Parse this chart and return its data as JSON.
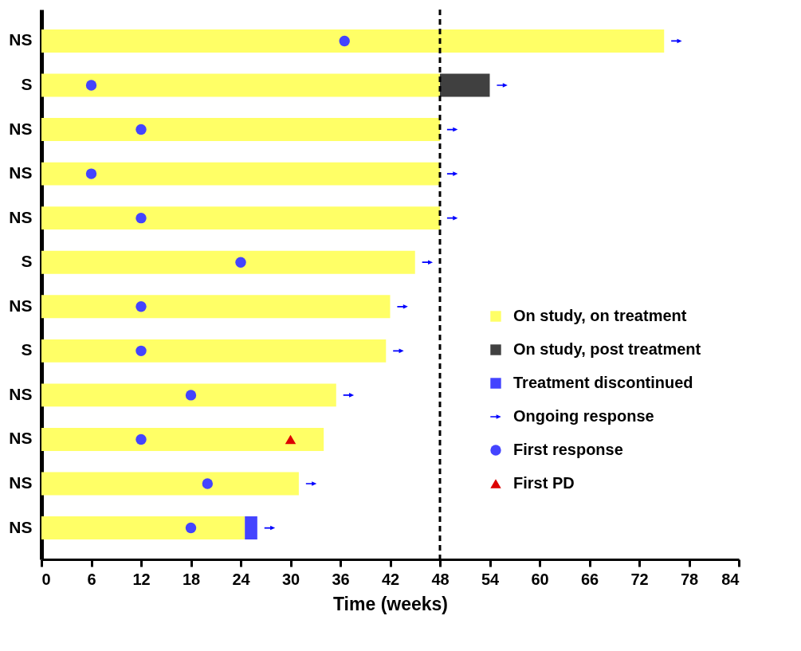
{
  "chart_data": {
    "type": "bar",
    "orientation": "horizontal",
    "stacked": true,
    "xlabel": "Time (weeks)",
    "categories": [
      "NS",
      "S",
      "NS",
      "NS",
      "NS",
      "S",
      "NS",
      "S",
      "NS",
      "NS",
      "NS",
      "NS"
    ],
    "series": [
      {
        "name": "On study, on treatment",
        "type": "bar",
        "color": "#ffff66",
        "values": [
          75,
          48,
          48,
          48,
          48,
          45,
          42,
          41.5,
          35.5,
          34,
          31,
          24.5
        ]
      },
      {
        "name": "On study, post treatment",
        "type": "bar",
        "color": "#404040",
        "values": [
          null,
          6,
          null,
          null,
          null,
          null,
          null,
          null,
          null,
          null,
          null,
          null
        ]
      },
      {
        "name": "Treatment discontinued",
        "type": "bar",
        "color": "#4444ff",
        "values": [
          null,
          null,
          null,
          null,
          null,
          null,
          null,
          null,
          null,
          null,
          null,
          1.5
        ]
      },
      {
        "name": "Ongoing response",
        "type": "scatter",
        "color": "#0000ff",
        "values": [
          76.5,
          55.5,
          49.5,
          49.5,
          49.5,
          46.5,
          43.5,
          43,
          37,
          null,
          32.5,
          27.5
        ]
      },
      {
        "name": "First response",
        "type": "scatter",
        "marker": "circle",
        "color": "#4444ff",
        "values": [
          36.5,
          6,
          12,
          6,
          12,
          24,
          12,
          12,
          18,
          12,
          20,
          18
        ]
      },
      {
        "name": "First PD",
        "type": "scatter",
        "marker": "triangle",
        "color": "#dd0000",
        "values": [
          null,
          null,
          null,
          null,
          null,
          null,
          null,
          null,
          null,
          30,
          null,
          null
        ]
      }
    ],
    "xlim": [
      0,
      84
    ],
    "xticks": [
      0,
      6,
      12,
      18,
      24,
      30,
      36,
      42,
      48,
      54,
      60,
      66,
      72,
      78,
      84
    ],
    "ref_lines": [
      {
        "axis": "x",
        "value": 48,
        "color": "#000000",
        "line_style": "dashed"
      }
    ],
    "legend": "bottom right",
    "grid": false
  }
}
